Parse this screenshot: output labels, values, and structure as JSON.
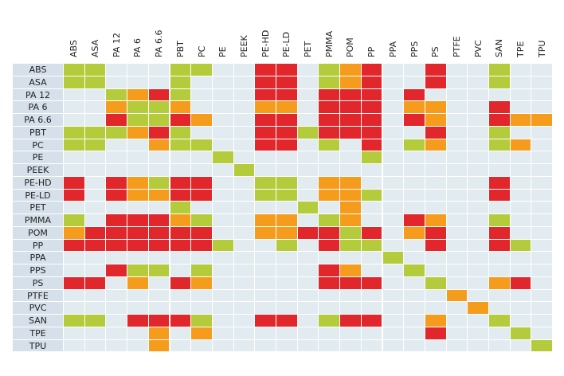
{
  "matrix": {
    "columns": [
      "ABS",
      "ASA",
      "PA 12",
      "PA 6",
      "PA 6.6",
      "PBT",
      "PC",
      "PE",
      "PEEK",
      "PE-HD",
      "PE-LD",
      "PET",
      "PMMA",
      "POM",
      "PP",
      "PPA",
      "PPS",
      "PS",
      "PTFE",
      "PVC",
      "SAN",
      "TPE",
      "TPU"
    ],
    "rows": [
      {
        "label": "ABS",
        "cells": [
          "#b4cc3b",
          "#b4cc3b",
          null,
          null,
          null,
          "#b4cc3b",
          "#b4cc3b",
          null,
          null,
          "#e1262c",
          "#e1262c",
          null,
          "#b4cc3b",
          "#f59c1c",
          "#e1262c",
          null,
          null,
          "#e1262c",
          null,
          null,
          "#b4cc3b",
          null,
          null
        ]
      },
      {
        "label": "ASA",
        "cells": [
          "#b4cc3b",
          "#b4cc3b",
          null,
          null,
          null,
          "#b4cc3b",
          null,
          null,
          null,
          "#e1262c",
          "#e1262c",
          null,
          "#b4cc3b",
          "#f59c1c",
          "#e1262c",
          null,
          null,
          "#e1262c",
          null,
          null,
          "#b4cc3b",
          null,
          null
        ]
      },
      {
        "label": "PA 12",
        "cells": [
          null,
          null,
          "#b4cc3b",
          "#f59c1c",
          "#e1262c",
          "#b4cc3b",
          null,
          null,
          null,
          "#e1262c",
          "#e1262c",
          null,
          "#e1262c",
          "#e1262c",
          "#e1262c",
          null,
          "#e1262c",
          null,
          null,
          null,
          null,
          null,
          null
        ]
      },
      {
        "label": "PA 6",
        "cells": [
          null,
          null,
          "#f59c1c",
          "#b4cc3b",
          "#b4cc3b",
          "#f59c1c",
          null,
          null,
          null,
          "#f59c1c",
          "#f59c1c",
          null,
          "#e1262c",
          "#e1262c",
          "#e1262c",
          null,
          "#f59c1c",
          "#f59c1c",
          null,
          null,
          "#e1262c",
          null,
          null
        ]
      },
      {
        "label": "PA 6.6",
        "cells": [
          null,
          null,
          "#e1262c",
          "#b4cc3b",
          "#b4cc3b",
          "#e1262c",
          "#f59c1c",
          null,
          null,
          "#e1262c",
          "#e1262c",
          null,
          "#e1262c",
          "#e1262c",
          "#e1262c",
          null,
          "#e1262c",
          "#f59c1c",
          null,
          null,
          "#e1262c",
          "#f59c1c",
          "#f59c1c"
        ]
      },
      {
        "label": "PBT",
        "cells": [
          "#b4cc3b",
          "#b4cc3b",
          "#b4cc3b",
          "#f59c1c",
          "#e1262c",
          "#b4cc3b",
          null,
          null,
          null,
          "#e1262c",
          "#e1262c",
          "#b4cc3b",
          "#e1262c",
          "#e1262c",
          "#e1262c",
          null,
          null,
          "#e1262c",
          null,
          null,
          "#b4cc3b",
          null,
          null
        ]
      },
      {
        "label": "PC",
        "cells": [
          "#b4cc3b",
          "#b4cc3b",
          null,
          null,
          "#f59c1c",
          "#b4cc3b",
          "#b4cc3b",
          null,
          null,
          "#e1262c",
          "#e1262c",
          null,
          "#b4cc3b",
          null,
          "#e1262c",
          null,
          "#b4cc3b",
          "#f59c1c",
          null,
          null,
          "#b4cc3b",
          "#f59c1c",
          null
        ]
      },
      {
        "label": "PE",
        "cells": [
          null,
          null,
          null,
          null,
          null,
          null,
          null,
          "#b4cc3b",
          null,
          null,
          null,
          null,
          null,
          null,
          "#b4cc3b",
          null,
          null,
          null,
          null,
          null,
          null,
          null,
          null
        ]
      },
      {
        "label": "PEEK",
        "cells": [
          null,
          null,
          null,
          null,
          null,
          null,
          null,
          null,
          "#b4cc3b",
          null,
          null,
          null,
          null,
          null,
          null,
          null,
          null,
          null,
          null,
          null,
          null,
          null,
          null
        ]
      },
      {
        "label": "PE-HD",
        "cells": [
          "#e1262c",
          null,
          "#e1262c",
          "#f59c1c",
          "#b4cc3b",
          "#e1262c",
          "#e1262c",
          null,
          null,
          "#b4cc3b",
          "#b4cc3b",
          null,
          "#f59c1c",
          "#f59c1c",
          null,
          null,
          null,
          null,
          null,
          null,
          "#e1262c",
          null,
          null
        ]
      },
      {
        "label": "PE-LD",
        "cells": [
          "#e1262c",
          null,
          "#e1262c",
          "#f59c1c",
          "#f59c1c",
          "#e1262c",
          "#e1262c",
          null,
          null,
          "#b4cc3b",
          "#b4cc3b",
          null,
          "#f59c1c",
          "#f59c1c",
          "#b4cc3b",
          null,
          null,
          null,
          null,
          null,
          "#e1262c",
          null,
          null
        ]
      },
      {
        "label": "PET",
        "cells": [
          null,
          null,
          null,
          null,
          null,
          "#b4cc3b",
          null,
          null,
          null,
          null,
          null,
          "#b4cc3b",
          null,
          "#f59c1c",
          null,
          null,
          null,
          null,
          null,
          null,
          null,
          null,
          null
        ]
      },
      {
        "label": "PMMA",
        "cells": [
          "#b4cc3b",
          null,
          "#e1262c",
          "#e1262c",
          "#e1262c",
          "#f59c1c",
          "#b4cc3b",
          null,
          null,
          "#f59c1c",
          "#f59c1c",
          null,
          "#b4cc3b",
          "#f59c1c",
          null,
          null,
          "#e1262c",
          "#f59c1c",
          null,
          null,
          "#b4cc3b",
          null,
          null
        ]
      },
      {
        "label": "POM",
        "cells": [
          "#f59c1c",
          "#e1262c",
          "#e1262c",
          "#e1262c",
          "#e1262c",
          "#e1262c",
          "#e1262c",
          null,
          null,
          "#f59c1c",
          "#f59c1c",
          "#e1262c",
          "#e1262c",
          "#b4cc3b",
          "#e1262c",
          null,
          "#f59c1c",
          "#e1262c",
          null,
          null,
          "#e1262c",
          null,
          null
        ]
      },
      {
        "label": "PP",
        "cells": [
          "#e1262c",
          "#e1262c",
          "#e1262c",
          "#e1262c",
          "#e1262c",
          "#e1262c",
          "#e1262c",
          "#b4cc3b",
          null,
          null,
          "#b4cc3b",
          null,
          "#e1262c",
          "#b4cc3b",
          "#b4cc3b",
          null,
          null,
          "#e1262c",
          null,
          null,
          "#e1262c",
          "#b4cc3b",
          null
        ]
      },
      {
        "label": "PPA",
        "cells": [
          null,
          null,
          null,
          null,
          null,
          null,
          null,
          null,
          null,
          null,
          null,
          null,
          null,
          null,
          null,
          "#b4cc3b",
          null,
          null,
          null,
          null,
          null,
          null,
          null
        ]
      },
      {
        "label": "PPS",
        "cells": [
          null,
          null,
          "#e1262c",
          "#b4cc3b",
          "#b4cc3b",
          null,
          "#b4cc3b",
          null,
          null,
          null,
          null,
          null,
          "#e1262c",
          "#f59c1c",
          null,
          null,
          "#b4cc3b",
          null,
          null,
          null,
          null,
          null,
          null
        ]
      },
      {
        "label": "PS",
        "cells": [
          "#e1262c",
          "#e1262c",
          null,
          "#f59c1c",
          null,
          "#e1262c",
          "#f59c1c",
          null,
          null,
          null,
          null,
          null,
          "#e1262c",
          "#e1262c",
          "#e1262c",
          null,
          null,
          "#b4cc3b",
          null,
          null,
          "#f59c1c",
          "#e1262c",
          null
        ]
      },
      {
        "label": "PTFE",
        "cells": [
          null,
          null,
          null,
          null,
          null,
          null,
          null,
          null,
          null,
          null,
          null,
          null,
          null,
          null,
          null,
          null,
          null,
          null,
          "#f59c1c",
          null,
          null,
          null,
          null
        ]
      },
      {
        "label": "PVC",
        "cells": [
          null,
          null,
          null,
          null,
          null,
          null,
          null,
          null,
          null,
          null,
          null,
          null,
          null,
          null,
          null,
          null,
          null,
          null,
          null,
          "#f59c1c",
          null,
          null,
          null
        ]
      },
      {
        "label": "SAN",
        "cells": [
          "#b4cc3b",
          "#b4cc3b",
          null,
          "#e1262c",
          "#e1262c",
          "#e1262c",
          "#b4cc3b",
          null,
          null,
          "#e1262c",
          "#e1262c",
          null,
          "#b4cc3b",
          "#e1262c",
          "#e1262c",
          null,
          null,
          "#f59c1c",
          null,
          null,
          "#b4cc3b",
          null,
          null
        ]
      },
      {
        "label": "TPE",
        "cells": [
          null,
          null,
          null,
          null,
          "#f59c1c",
          null,
          "#f59c1c",
          null,
          null,
          null,
          null,
          null,
          null,
          null,
          null,
          null,
          null,
          "#e1262c",
          null,
          null,
          null,
          "#b4cc3b",
          null
        ]
      },
      {
        "label": "TPU",
        "cells": [
          null,
          null,
          null,
          null,
          "#f59c1c",
          null,
          null,
          null,
          null,
          null,
          null,
          null,
          null,
          null,
          null,
          null,
          null,
          null,
          null,
          null,
          null,
          null,
          "#b4cc3b"
        ]
      }
    ],
    "empty_color": "#e2ecf0",
    "label_color": "#d6e0ea"
  }
}
